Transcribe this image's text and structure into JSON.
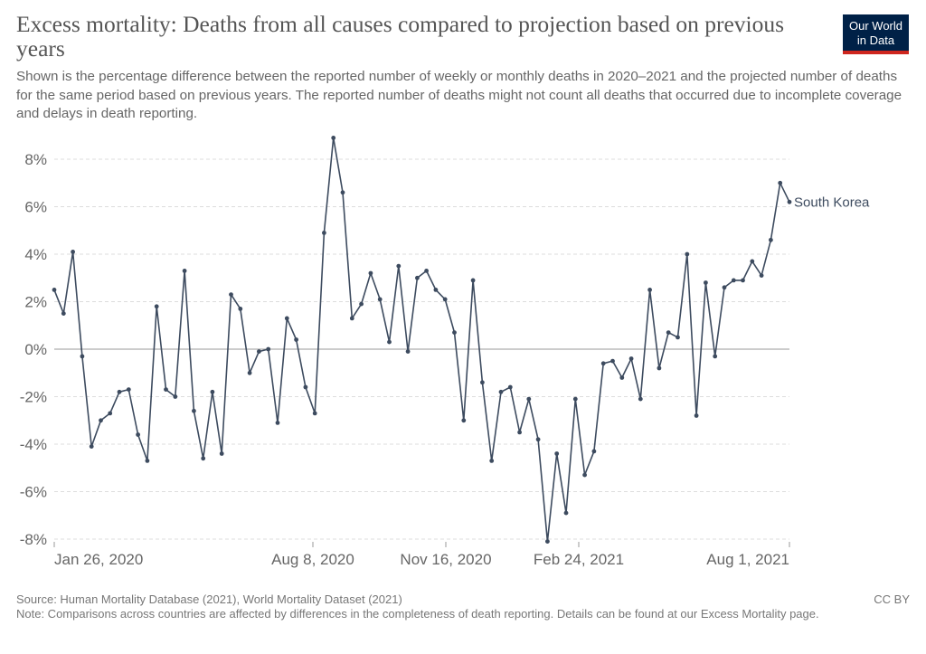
{
  "header": {
    "title": "Excess mortality: Deaths from all causes compared to projection based on previous years",
    "subtitle": "Shown is the percentage difference between the reported number of weekly or monthly deaths in 2020–2021 and the projected number of deaths for the same period based on previous years. The reported number of deaths might not count all deaths that occurred due to incomplete coverage and delays in death reporting.",
    "logo_line1": "Our World",
    "logo_line2": "in Data"
  },
  "footer": {
    "source": "Source: Human Mortality Database (2021), World Mortality Dataset (2021)",
    "note": "Note: Comparisons across countries are affected by differences in the completeness of death reporting. Details can be found at our Excess Mortality page.",
    "license": "CC BY"
  },
  "colors": {
    "series": "#3d4b5f",
    "grid": "#dddddd",
    "zero_line": "#999999",
    "logo_bg": "#002147",
    "logo_accent": "#ce261e"
  },
  "chart_data": {
    "type": "line",
    "title": "Excess mortality: Deaths from all causes compared to projection based on previous years",
    "ylabel": "",
    "xlabel": "",
    "y_unit": "%",
    "ylim": [
      -8,
      8.6
    ],
    "y_ticks": [
      -8,
      -6,
      -4,
      -2,
      0,
      2,
      4,
      6,
      8
    ],
    "y_tick_labels": [
      "-8%",
      "-6%",
      "-4%",
      "-2%",
      "0%",
      "2%",
      "4%",
      "6%",
      "8%"
    ],
    "x_tick_labels": [
      "Jan 26, 2020",
      "Aug 8, 2020",
      "Nov 16, 2020",
      "Feb 24, 2021",
      "Aug 1, 2021"
    ],
    "grid": "horizontal dashed",
    "legend": "inline label at end of line",
    "series": [
      {
        "name": "South Korea",
        "values": [
          2.5,
          1.5,
          4.1,
          -0.3,
          -4.1,
          -3.0,
          -2.7,
          -1.8,
          -1.7,
          -3.6,
          -4.7,
          1.8,
          -1.7,
          -2.0,
          3.3,
          -2.6,
          -4.6,
          -1.8,
          -4.4,
          2.3,
          1.7,
          -1.0,
          -0.1,
          0.0,
          -3.1,
          1.3,
          0.4,
          -1.6,
          -2.7,
          4.9,
          8.9,
          6.6,
          1.3,
          1.9,
          3.2,
          2.1,
          0.3,
          3.5,
          -0.1,
          3.0,
          3.3,
          2.5,
          2.1,
          0.7,
          -3.0,
          2.9,
          -1.4,
          -4.7,
          -1.8,
          -1.6,
          -3.5,
          -2.1,
          -3.8,
          -8.1,
          -4.4,
          -6.9,
          -2.1,
          -5.3,
          -4.3,
          -0.6,
          -0.5,
          -1.2,
          -0.4,
          -2.1,
          2.5,
          -0.8,
          0.7,
          0.5,
          4.0,
          -2.8,
          2.8,
          -0.3,
          2.6,
          2.9,
          2.9,
          3.7,
          3.1,
          4.6,
          7.0,
          6.2
        ]
      }
    ]
  }
}
